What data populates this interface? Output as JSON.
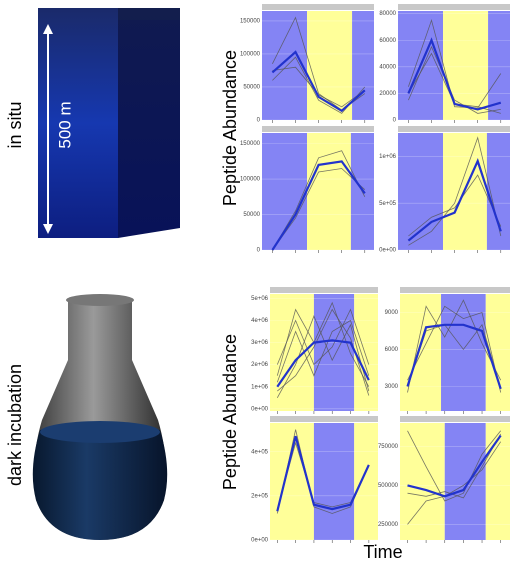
{
  "labels": {
    "in_situ": "in situ",
    "dark": "dark incubation",
    "depth": "500 m",
    "ylabel_top": "Peptide Abundance",
    "ylabel_bottom": "Peptide Abundance",
    "xlabel": "Time"
  },
  "chart_data": [
    {
      "type": "line",
      "x": [
        1,
        2,
        3,
        4,
        5
      ],
      "xlim": [
        0.55,
        5.4
      ],
      "ylim": [
        0,
        165000
      ],
      "yticks": [
        0,
        50000,
        100000,
        150000
      ],
      "bands": [
        {
          "from": 0.55,
          "to": 2.5,
          "color": "#8484f4"
        },
        {
          "from": 2.5,
          "to": 4.45,
          "color": "#ffff99"
        },
        {
          "from": 4.45,
          "to": 5.4,
          "color": "#8484f4"
        }
      ],
      "series": [
        {
          "color": "#555555",
          "values": [
            85000,
            155000,
            40000,
            15000,
            40000
          ]
        },
        {
          "color": "#555555",
          "values": [
            60000,
            95000,
            30000,
            10000,
            50000
          ]
        },
        {
          "color": "#555555",
          "values": [
            75000,
            80000,
            38000,
            20000,
            45000
          ]
        },
        {
          "color": "#2233cc",
          "values": [
            72000,
            103000,
            35000,
            14000,
            45000
          ]
        }
      ]
    },
    {
      "type": "line",
      "x": [
        1,
        2,
        3,
        4,
        5
      ],
      "xlim": [
        0.55,
        5.4
      ],
      "ylim": [
        0,
        82000
      ],
      "yticks": [
        0,
        20000,
        40000,
        60000,
        80000
      ],
      "bands": [
        {
          "from": 0.55,
          "to": 2.5,
          "color": "#8484f4"
        },
        {
          "from": 2.5,
          "to": 4.45,
          "color": "#ffff99"
        },
        {
          "from": 4.45,
          "to": 5.4,
          "color": "#8484f4"
        }
      ],
      "series": [
        {
          "color": "#555555",
          "values": [
            25000,
            75000,
            10000,
            9000,
            35000
          ]
        },
        {
          "color": "#555555",
          "values": [
            15000,
            55000,
            15000,
            5000,
            8000
          ]
        },
        {
          "color": "#555555",
          "values": [
            20000,
            50000,
            12000,
            10000,
            5000
          ]
        },
        {
          "color": "#2233cc",
          "values": [
            20000,
            60000,
            12000,
            8000,
            13000
          ]
        }
      ]
    },
    {
      "type": "line",
      "x": [
        1,
        2,
        3,
        4,
        5
      ],
      "xlim": [
        0.55,
        5.4
      ],
      "ylim": [
        0,
        165000
      ],
      "yticks": [
        0,
        50000,
        100000,
        150000
      ],
      "bands": [
        {
          "from": 0.55,
          "to": 2.5,
          "color": "#8484f4"
        },
        {
          "from": 2.5,
          "to": 4.4,
          "color": "#ffff99"
        },
        {
          "from": 4.4,
          "to": 5.4,
          "color": "#8484f4"
        }
      ],
      "series": [
        {
          "color": "#555555",
          "values": [
            0,
            55000,
            130000,
            140000,
            75000
          ]
        },
        {
          "color": "#555555",
          "values": [
            0,
            45000,
            110000,
            115000,
            85000
          ]
        },
        {
          "color": "#2233cc",
          "values": [
            0,
            50000,
            120000,
            125000,
            80000
          ]
        }
      ]
    },
    {
      "type": "line",
      "x": [
        1,
        2,
        3,
        4,
        5
      ],
      "xlim": [
        0.55,
        5.4
      ],
      "ylim": [
        0,
        1250000
      ],
      "yticks": [
        {
          "value": 0,
          "label": "0e+00"
        },
        {
          "value": 500000,
          "label": "5e+05"
        },
        {
          "value": 1000000,
          "label": "1e+06"
        }
      ],
      "bands": [
        {
          "from": 0.55,
          "to": 2.5,
          "color": "#8484f4"
        },
        {
          "from": 2.5,
          "to": 4.4,
          "color": "#ffff99"
        },
        {
          "from": 4.4,
          "to": 5.4,
          "color": "#8484f4"
        }
      ],
      "series": [
        {
          "color": "#555555",
          "values": [
            50000,
            200000,
            500000,
            1200000,
            150000
          ]
        },
        {
          "color": "#555555",
          "values": [
            150000,
            350000,
            450000,
            800000,
            250000
          ]
        },
        {
          "color": "#2233cc",
          "values": [
            100000,
            300000,
            400000,
            950000,
            200000
          ]
        }
      ]
    },
    {
      "type": "line",
      "x": [
        1,
        2,
        3,
        4,
        5,
        6
      ],
      "xlim": [
        0.6,
        6.5
      ],
      "ylim": [
        -100000,
        5200000
      ],
      "yticks": [
        {
          "value": 0,
          "label": "0e+00"
        },
        {
          "value": 1000000,
          "label": "1e+06"
        },
        {
          "value": 2000000,
          "label": "2e+06"
        },
        {
          "value": 3000000,
          "label": "3e+06"
        },
        {
          "value": 4000000,
          "label": "4e+06"
        },
        {
          "value": 5000000,
          "label": "5e+06"
        }
      ],
      "bands": [
        {
          "from": 0.6,
          "to": 3.0,
          "color": "#ffff99"
        },
        {
          "from": 3.0,
          "to": 5.2,
          "color": "#8484f4"
        },
        {
          "from": 5.2,
          "to": 6.5,
          "color": "#ffff99"
        }
      ],
      "series": [
        {
          "color": "#555555",
          "values": [
            1500000,
            4500000,
            3000000,
            4800000,
            2500000,
            1000000
          ]
        },
        {
          "color": "#555555",
          "values": [
            500000,
            2000000,
            4200000,
            2200000,
            3800000,
            800000
          ]
        },
        {
          "color": "#555555",
          "values": [
            1200000,
            3500000,
            1500000,
            3500000,
            4000000,
            1500000
          ]
        },
        {
          "color": "#555555",
          "values": [
            800000,
            1500000,
            2800000,
            4500000,
            3200000,
            600000
          ]
        },
        {
          "color": "#555555",
          "values": [
            2000000,
            4000000,
            2000000,
            2800000,
            4500000,
            2000000
          ]
        },
        {
          "color": "#2233cc",
          "values": [
            1000000,
            2200000,
            3000000,
            3100000,
            3000000,
            1300000
          ]
        }
      ]
    },
    {
      "type": "line",
      "x": [
        1,
        2,
        3,
        4,
        5,
        6
      ],
      "xlim": [
        0.6,
        6.5
      ],
      "ylim": [
        1000,
        10500
      ],
      "yticks": [
        3000,
        6000,
        9000
      ],
      "bands": [
        {
          "from": 0.6,
          "to": 2.8,
          "color": "#ffff99"
        },
        {
          "from": 2.8,
          "to": 5.2,
          "color": "#8484f4"
        },
        {
          "from": 5.2,
          "to": 6.5,
          "color": "#ffff99"
        }
      ],
      "series": [
        {
          "color": "#555555",
          "values": [
            2500,
            9500,
            7000,
            10000,
            6500,
            3500
          ]
        },
        {
          "color": "#555555",
          "values": [
            3500,
            6500,
            9500,
            8500,
            9000,
            2500
          ]
        },
        {
          "color": "#555555",
          "values": [
            3000,
            7500,
            8000,
            6000,
            8000,
            2800
          ]
        },
        {
          "color": "#2233cc",
          "values": [
            3000,
            7800,
            8000,
            8000,
            7500,
            2800
          ]
        }
      ]
    },
    {
      "type": "line",
      "x": [
        1,
        2,
        3,
        4,
        5,
        6
      ],
      "xlim": [
        0.6,
        6.5
      ],
      "ylim": [
        0,
        530000
      ],
      "yticks": [
        {
          "value": 0,
          "label": "0e+00"
        },
        {
          "value": 200000,
          "label": "2e+05"
        },
        {
          "value": 400000,
          "label": "4e+05"
        }
      ],
      "bands": [
        {
          "from": 0.6,
          "to": 3.0,
          "color": "#ffff99"
        },
        {
          "from": 3.0,
          "to": 5.2,
          "color": "#8484f4"
        },
        {
          "from": 5.2,
          "to": 6.5,
          "color": "#ffff99"
        }
      ],
      "series": [
        {
          "color": "#555555",
          "values": [
            120000,
            500000,
            150000,
            120000,
            150000,
            340000
          ]
        },
        {
          "color": "#555555",
          "values": [
            140000,
            440000,
            170000,
            150000,
            170000,
            340000
          ]
        },
        {
          "color": "#2233cc",
          "values": [
            130000,
            470000,
            160000,
            140000,
            160000,
            340000
          ]
        }
      ]
    },
    {
      "type": "line",
      "x": [
        1,
        2,
        3,
        4,
        5,
        6
      ],
      "xlim": [
        0.6,
        6.5
      ],
      "ylim": [
        150000,
        900000
      ],
      "yticks": [
        250000,
        500000,
        750000
      ],
      "bands": [
        {
          "from": 0.6,
          "to": 3.0,
          "color": "#ffff99"
        },
        {
          "from": 3.0,
          "to": 5.2,
          "color": "#8484f4"
        },
        {
          "from": 5.2,
          "to": 6.5,
          "color": "#ffff99"
        }
      ],
      "series": [
        {
          "color": "#555555",
          "values": [
            850000,
            620000,
            400000,
            450000,
            700000,
            850000
          ]
        },
        {
          "color": "#555555",
          "values": [
            250000,
            400000,
            430000,
            500000,
            600000,
            780000
          ]
        },
        {
          "color": "#555555",
          "values": [
            450000,
            430000,
            460000,
            420000,
            620000,
            830000
          ]
        },
        {
          "color": "#2233cc",
          "values": [
            500000,
            470000,
            430000,
            470000,
            650000,
            820000
          ]
        }
      ]
    }
  ]
}
